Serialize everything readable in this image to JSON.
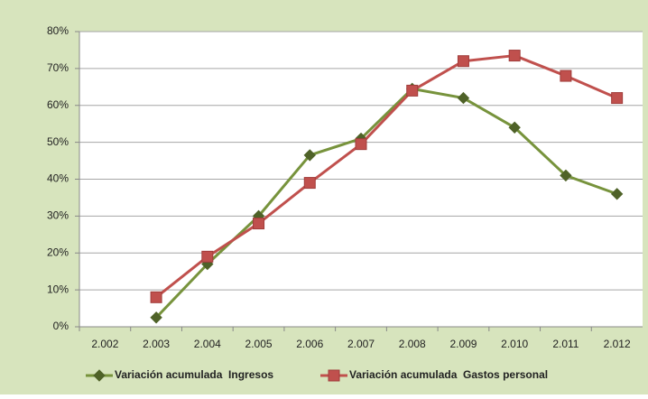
{
  "chart_data": {
    "type": "line",
    "categories": [
      "2.002",
      "2.003",
      "2.004",
      "2.005",
      "2.006",
      "2.007",
      "2.008",
      "2.009",
      "2.010",
      "2.011",
      "2.012"
    ],
    "series": [
      {
        "name": "Variación acumulada  Ingresos",
        "color": "#77933c",
        "marker": "diamond",
        "values": [
          null,
          2.5,
          17,
          30,
          46.5,
          51,
          64.5,
          62,
          54,
          41,
          36
        ]
      },
      {
        "name": "Variación acumulada  Gastos personal",
        "color": "#c0504d",
        "marker": "square",
        "values": [
          null,
          8,
          19,
          28,
          39,
          49.5,
          64,
          72,
          73.5,
          68,
          62
        ]
      }
    ],
    "ylim": [
      0,
      80
    ],
    "yticks": [
      {
        "value": 0,
        "label": "0%"
      },
      {
        "value": 10,
        "label": "10%"
      },
      {
        "value": 20,
        "label": "20%"
      },
      {
        "value": 30,
        "label": "30%"
      },
      {
        "value": 40,
        "label": "40%"
      },
      {
        "value": 50,
        "label": "50%"
      },
      {
        "value": 60,
        "label": "60%"
      },
      {
        "value": 70,
        "label": "70%"
      },
      {
        "value": 80,
        "label": "80%"
      }
    ],
    "grid": true,
    "legend": "bottom"
  }
}
